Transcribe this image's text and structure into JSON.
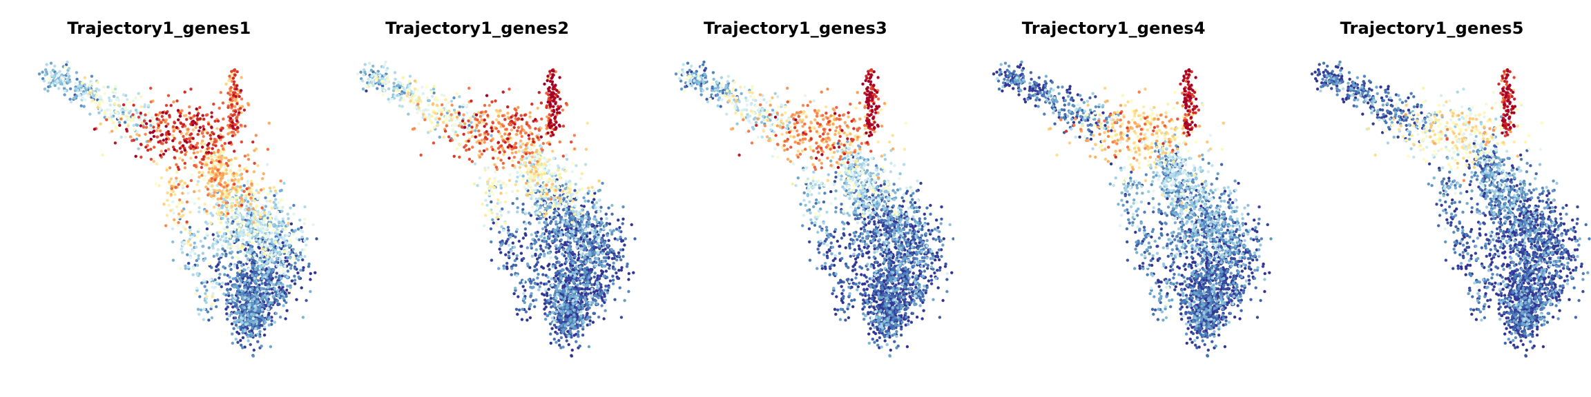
{
  "figure": {
    "background": "#ffffff",
    "colormap": "RdYlBu_r",
    "colormap_stops": [
      "#313695",
      "#4575b4",
      "#74add1",
      "#abd9e9",
      "#e0f3f8",
      "#ffffbf",
      "#fee090",
      "#fdae61",
      "#f46d43",
      "#d73027",
      "#a50026"
    ]
  },
  "chart_data": [
    {
      "type": "scatter",
      "title": "Trajectory1_genes1",
      "axes": "off",
      "legend": "none",
      "grid": false,
      "region_expression": {
        "left_arm_tip": 0.25,
        "left_arm": 0.38,
        "branch_junction": 0.85,
        "top_spike": 0.8,
        "upper_body": 0.6,
        "mid_body": 0.3,
        "lower_body": 0.08
      }
    },
    {
      "type": "scatter",
      "title": "Trajectory1_genes2",
      "axes": "off",
      "legend": "none",
      "grid": false,
      "region_expression": {
        "left_arm_tip": 0.28,
        "left_arm": 0.42,
        "branch_junction": 0.78,
        "top_spike": 0.98,
        "upper_body": 0.42,
        "mid_body": 0.1,
        "lower_body": 0.04
      }
    },
    {
      "type": "scatter",
      "title": "Trajectory1_genes3",
      "axes": "off",
      "legend": "none",
      "grid": false,
      "region_expression": {
        "left_arm_tip": 0.2,
        "left_arm": 0.36,
        "branch_junction": 0.72,
        "top_spike": 0.98,
        "upper_body": 0.3,
        "mid_body": 0.07,
        "lower_body": 0.03
      }
    },
    {
      "type": "scatter",
      "title": "Trajectory1_genes4",
      "axes": "off",
      "legend": "none",
      "grid": false,
      "region_expression": {
        "left_arm_tip": 0.04,
        "left_arm": 0.12,
        "branch_junction": 0.62,
        "top_spike": 0.96,
        "upper_body": 0.24,
        "mid_body": 0.14,
        "lower_body": 0.03
      }
    },
    {
      "type": "scatter",
      "title": "Trajectory1_genes5",
      "axes": "off",
      "legend": "none",
      "grid": false,
      "region_expression": {
        "left_arm_tip": 0.05,
        "left_arm": 0.1,
        "branch_junction": 0.5,
        "top_spike": 0.95,
        "upper_body": 0.14,
        "mid_body": 0.05,
        "lower_body": 0.02
      }
    }
  ]
}
